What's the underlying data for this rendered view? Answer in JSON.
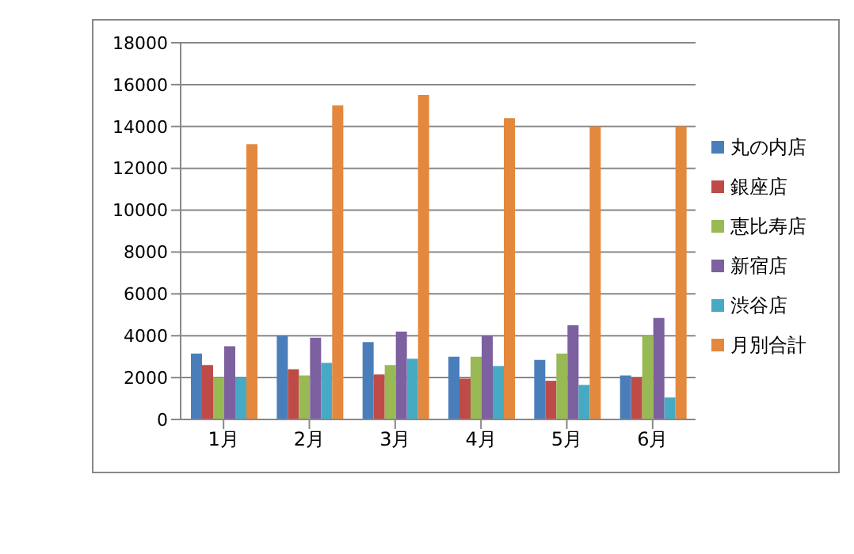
{
  "chart_data": {
    "type": "bar",
    "categories": [
      "1月",
      "2月",
      "3月",
      "4月",
      "5月",
      "6月"
    ],
    "series": [
      {
        "name": "丸の内店",
        "color": "#4a7ebb",
        "values": [
          3150,
          4000,
          3700,
          3000,
          2850,
          2100
        ]
      },
      {
        "name": "銀座店",
        "color": "#be4b48",
        "values": [
          2600,
          2400,
          2150,
          1950,
          1850,
          2000
        ]
      },
      {
        "name": "恵比寿店",
        "color": "#98b954",
        "values": [
          2000,
          2100,
          2600,
          3000,
          3150,
          4000
        ]
      },
      {
        "name": "新宿店",
        "color": "#7d60a0",
        "values": [
          3500,
          3900,
          4200,
          4000,
          4500,
          4850
        ]
      },
      {
        "name": "渋谷店",
        "color": "#46aac5",
        "values": [
          2000,
          2700,
          2900,
          2550,
          1650,
          1050
        ]
      },
      {
        "name": "月別合計",
        "color": "#e3883d",
        "values": [
          13150,
          15000,
          15500,
          14400,
          14000,
          14000
        ]
      }
    ],
    "ylim": [
      0,
      18000
    ],
    "yticks": [
      0,
      2000,
      4000,
      6000,
      8000,
      10000,
      12000,
      14000,
      16000,
      18000
    ],
    "grid": "y",
    "legend": "right"
  }
}
